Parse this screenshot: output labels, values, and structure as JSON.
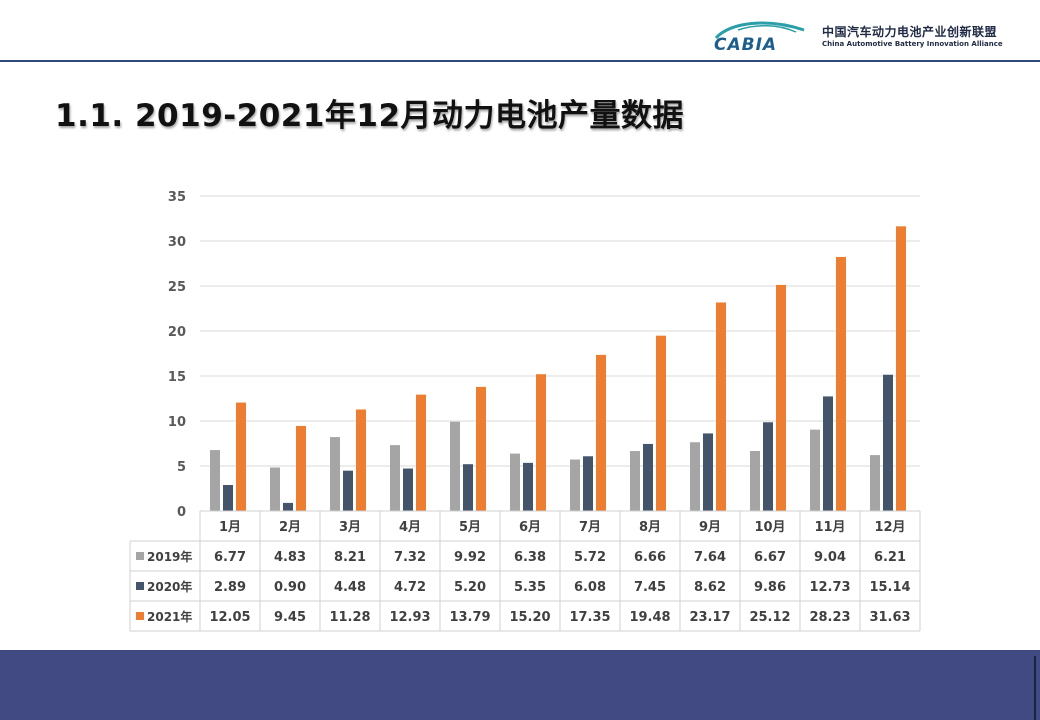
{
  "header": {
    "logo_text": "CABIA",
    "org_cn": "中国汽车动力电池产业创新联盟",
    "org_en": "China Automotive Battery Innovation Alliance"
  },
  "page": {
    "title": "1.1. 2019-2021年12月动力电池产量数据"
  },
  "chart_data": {
    "type": "bar",
    "categories": [
      "1月",
      "2月",
      "3月",
      "4月",
      "5月",
      "6月",
      "7月",
      "8月",
      "9月",
      "10月",
      "11月",
      "12月"
    ],
    "series": [
      {
        "name": "2019年",
        "color": "#a5a5a5",
        "values": [
          6.77,
          4.83,
          8.21,
          7.32,
          9.92,
          6.38,
          5.72,
          6.66,
          7.64,
          6.67,
          9.04,
          6.21
        ],
        "labels": [
          "6.77",
          "4.83",
          "8.21",
          "7.32",
          "9.92",
          "6.38",
          "5.72",
          "6.66",
          "7.64",
          "6.67",
          "9.04",
          "6.21"
        ]
      },
      {
        "name": "2020年",
        "color": "#44546a",
        "values": [
          2.89,
          0.9,
          4.48,
          4.72,
          5.2,
          5.35,
          6.08,
          7.45,
          8.62,
          9.86,
          12.73,
          15.14
        ],
        "labels": [
          "2.89",
          "0.90",
          "4.48",
          "4.72",
          "5.20",
          "5.35",
          "6.08",
          "7.45",
          "8.62",
          "9.86",
          "12.73",
          "15.14"
        ]
      },
      {
        "name": "2021年",
        "color": "#ed7d31",
        "values": [
          12.05,
          9.45,
          11.28,
          12.93,
          13.79,
          15.2,
          17.35,
          19.48,
          23.17,
          25.12,
          28.23,
          31.63
        ],
        "labels": [
          "12.05",
          "9.45",
          "11.28",
          "12.93",
          "13.79",
          "15.20",
          "17.35",
          "19.48",
          "23.17",
          "25.12",
          "28.23",
          "31.63"
        ]
      }
    ],
    "yticks": [
      "0",
      "5",
      "10",
      "15",
      "20",
      "25",
      "30",
      "35"
    ],
    "ylim": [
      0,
      35
    ],
    "grid": true,
    "legend": "data-table-left",
    "data_table": true
  }
}
